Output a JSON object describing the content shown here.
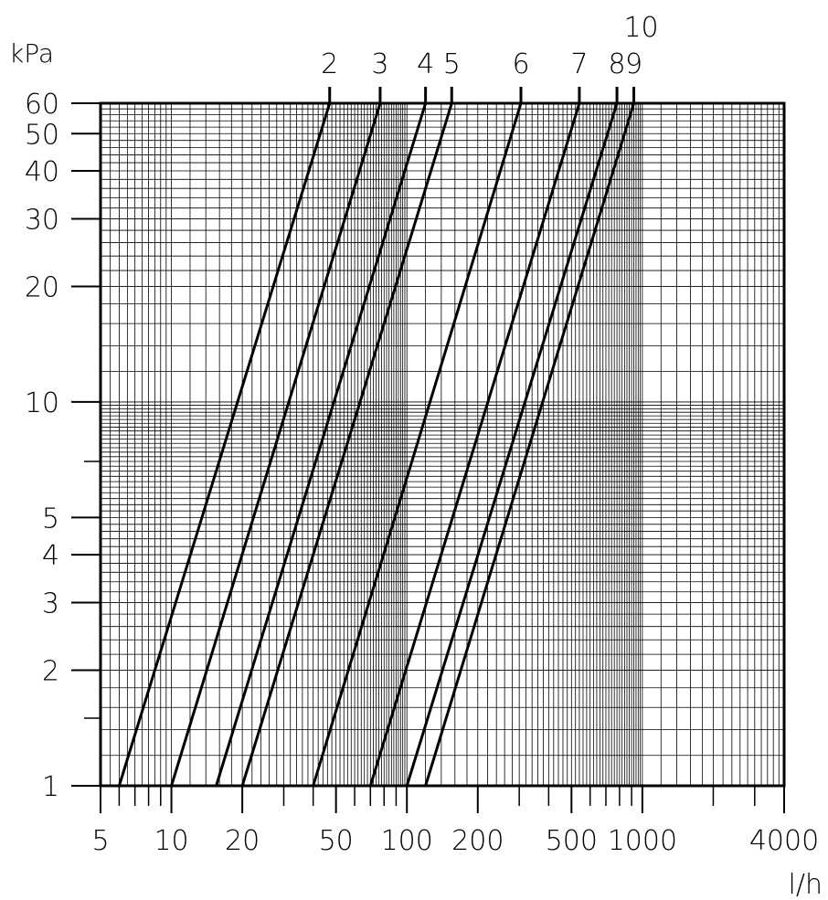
{
  "chart_data": {
    "type": "line",
    "x_scale": "log",
    "y_scale": "log",
    "xlim": [
      5,
      4000
    ],
    "ylim": [
      1,
      60
    ],
    "ylabel": "kPa",
    "xlabel": "l/h",
    "grid": true,
    "x_tick_labels": [
      "5",
      "10",
      "20",
      "50",
      "100",
      "200",
      "500",
      "1000",
      "4000"
    ],
    "y_tick_labels": [
      "1",
      "2",
      "3",
      "4",
      "5",
      "10",
      "20",
      "30",
      "40",
      "50",
      "60"
    ],
    "series": [
      {
        "name": "2",
        "x": [
          6,
          47
        ],
        "y": [
          1,
          60
        ]
      },
      {
        "name": "3",
        "x": [
          10,
          77
        ],
        "y": [
          1,
          60
        ]
      },
      {
        "name": "4",
        "x": [
          15.5,
          120
        ],
        "y": [
          1,
          60
        ]
      },
      {
        "name": "5",
        "x": [
          20,
          155
        ],
        "y": [
          1,
          60
        ]
      },
      {
        "name": "6",
        "x": [
          40,
          305
        ],
        "y": [
          1,
          60
        ]
      },
      {
        "name": "7",
        "x": [
          70,
          540
        ],
        "y": [
          1,
          60
        ]
      },
      {
        "name": "8",
        "x": [
          100,
          780
        ],
        "y": [
          1,
          60
        ]
      },
      {
        "name": "9",
        "x": [
          120,
          920
        ],
        "y": [
          1,
          60
        ]
      }
    ],
    "extra_labels": [
      "10"
    ],
    "line_color": "#000000",
    "background": "#ffffff"
  }
}
